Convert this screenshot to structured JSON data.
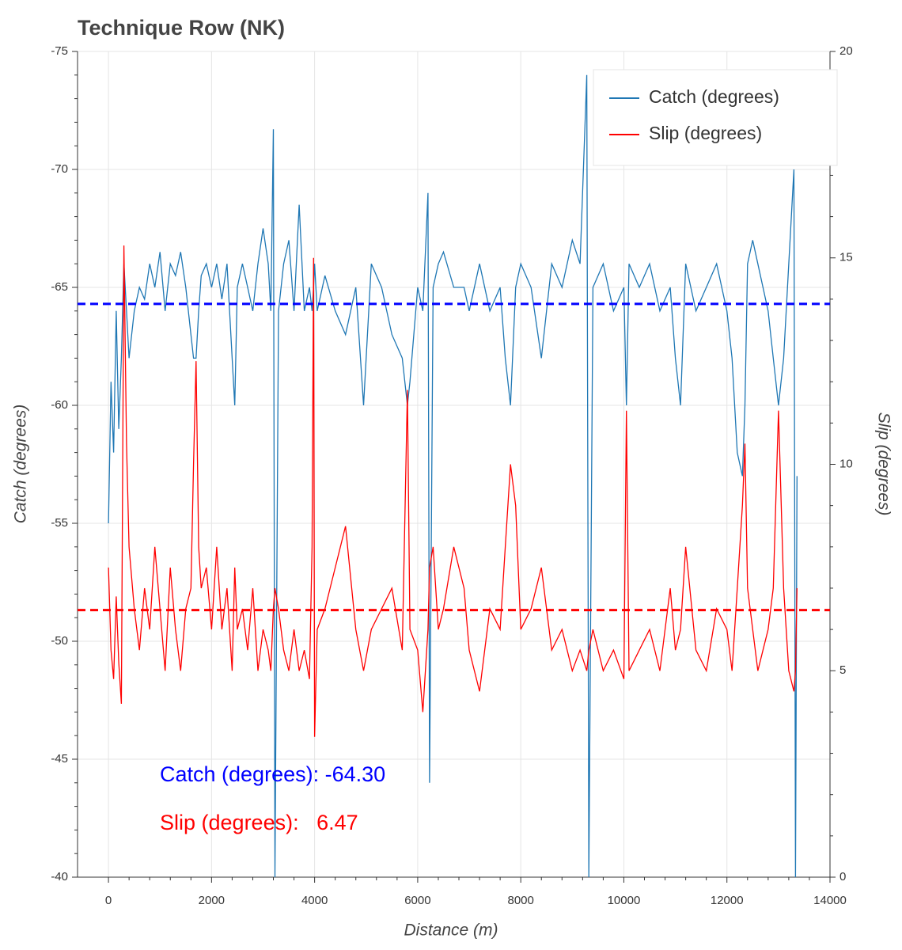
{
  "chart_data": {
    "type": "line",
    "title": "Technique Row (NK)",
    "xlabel": "Distance (m)",
    "ylabel": "Catch (degrees)",
    "y2label": "Slip (degrees)",
    "xlim": [
      -600,
      14000
    ],
    "xticks": [
      0,
      2000,
      4000,
      6000,
      8000,
      10000,
      12000,
      14000
    ],
    "ylim": [
      -40,
      -75
    ],
    "yticks": [
      -75,
      -70,
      -65,
      -60,
      -55,
      -50,
      -45,
      -40
    ],
    "y2lim": [
      0,
      20
    ],
    "y2ticks": [
      0,
      5,
      10,
      15,
      20
    ],
    "grid": true,
    "legend": "top-right",
    "x": [
      0,
      50,
      100,
      150,
      200,
      250,
      300,
      350,
      400,
      500,
      600,
      700,
      800,
      900,
      1000,
      1100,
      1200,
      1300,
      1400,
      1500,
      1600,
      1650,
      1700,
      1750,
      1800,
      1900,
      2000,
      2100,
      2200,
      2300,
      2400,
      2450,
      2500,
      2600,
      2700,
      2800,
      2900,
      3000,
      3100,
      3150,
      3200,
      3230,
      3300,
      3400,
      3500,
      3600,
      3700,
      3800,
      3900,
      3950,
      3980,
      4000,
      4050,
      4200,
      4400,
      4600,
      4800,
      4950,
      5100,
      5300,
      5500,
      5700,
      5800,
      5850,
      6000,
      6100,
      6200,
      6230,
      6300,
      6400,
      6500,
      6700,
      6900,
      7000,
      7200,
      7400,
      7600,
      7700,
      7800,
      7900,
      8000,
      8200,
      8400,
      8600,
      8800,
      9000,
      9150,
      9280,
      9320,
      9400,
      9600,
      9800,
      10000,
      10050,
      10100,
      10300,
      10500,
      10700,
      10900,
      11000,
      11100,
      11200,
      11400,
      11600,
      11800,
      12000,
      12100,
      12200,
      12300,
      12350,
      12400,
      12500,
      12600,
      12700,
      12800,
      12900,
      13000,
      13100,
      13200,
      13300,
      13330,
      13360
    ],
    "series": [
      {
        "name": "Catch (degrees)",
        "color": "#1f77b4",
        "axis": "y",
        "values": [
          -55,
          -61,
          -58,
          -64,
          -59,
          -62,
          -66,
          -64,
          -62,
          -64,
          -65,
          -64.5,
          -66,
          -65,
          -66.5,
          -64,
          -66,
          -65.5,
          -66.5,
          -65,
          -63,
          -62,
          -62,
          -64,
          -65.5,
          -66,
          -65,
          -66,
          -64.5,
          -66,
          -62,
          -60,
          -65,
          -66,
          -65,
          -64,
          -66,
          -67.5,
          -66,
          -64,
          -71.7,
          -40,
          -64,
          -66,
          -67,
          -64,
          -68.5,
          -64,
          -65,
          -64,
          -65,
          -66,
          -64,
          -65.5,
          -64,
          -63,
          -65,
          -60,
          -66,
          -65,
          -63,
          -62,
          -60,
          -61,
          -65,
          -64,
          -69,
          -44,
          -65,
          -66,
          -66.5,
          -65,
          -65,
          -64,
          -66,
          -64,
          -65,
          -62,
          -60,
          -65,
          -66,
          -65,
          -62,
          -66,
          -65,
          -67,
          -66,
          -74,
          -40,
          -65,
          -66,
          -64,
          -65,
          -60,
          -66,
          -65,
          -66,
          -64,
          -65,
          -62,
          -60,
          -66,
          -64,
          -65,
          -66,
          -64,
          -62,
          -58,
          -57,
          -60,
          -66,
          -67,
          -66,
          -65,
          -64,
          -62,
          -60,
          -62,
          -66,
          -70,
          -40,
          -57
        ]
      },
      {
        "name": "Slip (degrees)",
        "color": "#ff0000",
        "axis": "y2",
        "values": [
          7.5,
          5.5,
          4.8,
          6.8,
          5.2,
          4.2,
          15.3,
          10.5,
          8,
          6.5,
          5.5,
          7,
          6,
          8,
          6.5,
          5,
          7.5,
          6,
          5,
          6.5,
          7,
          10,
          12.5,
          8,
          7,
          7.5,
          6,
          8,
          6,
          7,
          5,
          7.5,
          6,
          6.5,
          5.5,
          7,
          5,
          6,
          5.5,
          5,
          6.5,
          7,
          6.5,
          5.5,
          5,
          6,
          5,
          5.5,
          4.8,
          8,
          15,
          3.4,
          6,
          6.5,
          7.5,
          8.5,
          6,
          5,
          6,
          6.5,
          7,
          5.5,
          11.8,
          6,
          5.5,
          4,
          6,
          7.5,
          8,
          6,
          6.5,
          8,
          7,
          5.5,
          4.5,
          6.5,
          6,
          8,
          10,
          9,
          6,
          6.5,
          7.5,
          5.5,
          6,
          5,
          5.5,
          5,
          5.5,
          6,
          5,
          5.5,
          4.8,
          11.3,
          5,
          5.5,
          6,
          5,
          7,
          5.5,
          6,
          8,
          5.5,
          5,
          6.5,
          6,
          5,
          7,
          9,
          10.5,
          7,
          6,
          5,
          5.5,
          6,
          7,
          11.3,
          7,
          5,
          4.5,
          5,
          7
        ]
      }
    ],
    "reference_lines": [
      {
        "value": -64.3,
        "axis": "y",
        "color": "#0000ff"
      },
      {
        "value": 6.47,
        "axis": "y2",
        "color": "#ff0000"
      }
    ],
    "annotations": [
      {
        "text": "Catch (degrees): -64.30",
        "color": "#0000ff"
      },
      {
        "text": "Slip (degrees):   6.47",
        "color": "#ff0000"
      }
    ]
  }
}
